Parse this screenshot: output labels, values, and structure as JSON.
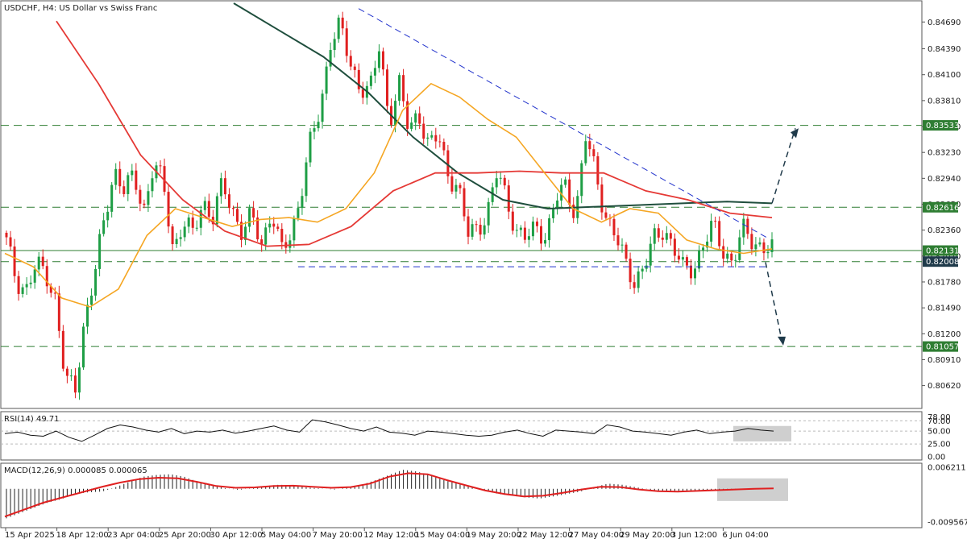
{
  "header": {
    "symbol_label": "USDCHF, H4:  US Dollar vs Swiss Franc"
  },
  "colors": {
    "bull": "#26a69a",
    "bear": "#e53935",
    "green_candle": "#1e9e45",
    "red_candle": "#e02020",
    "ma_fast": "#f5a623",
    "ma_mid": "#e53935",
    "ma_slow": "#1f4e3d",
    "level_line": "#2e7d32",
    "trend_line": "#2233cc",
    "arrow": "#1f3a4a",
    "macd_signal": "#e02020"
  },
  "chart_data": [
    {
      "type": "candlestick",
      "title": "USDCHF, H4:  US Dollar vs Swiss Franc",
      "price_axis_ticks": [
        "0.84690",
        "0.84390",
        "0.84100",
        "0.83810",
        "0.83520",
        "0.83230",
        "0.82940",
        "0.82650",
        "0.82360",
        "0.82070",
        "0.81780",
        "0.81490",
        "0.81200",
        "0.80910",
        "0.80620"
      ],
      "ylim": [
        0.804,
        0.849
      ],
      "x_tick_labels": [
        "15 Apr 2025",
        "18 Apr 12:00",
        "23 Apr 04:00",
        "25 Apr 20:00",
        "30 Apr 12:00",
        "5 May 04:00",
        "7 May 20:00",
        "12 May 12:00",
        "15 May 04:00",
        "19 May 20:00",
        "22 May 12:00",
        "27 May 04:00",
        "29 May 20:00",
        "3 Jun 12:00",
        "6 Jun 04:00"
      ],
      "horizontal_levels": [
        {
          "label": "0.83533",
          "value": 0.83533
        },
        {
          "label": "0.82616",
          "value": 0.82616
        },
        {
          "label": "0.82131",
          "value": 0.82131
        },
        {
          "label": "0.82008",
          "value": 0.82008
        },
        {
          "label": "0.81057",
          "value": 0.81057
        }
      ],
      "price_path": [
        0.8222,
        0.818,
        0.817,
        0.8195,
        0.8188,
        0.816,
        0.8065,
        0.8058,
        0.814,
        0.8185,
        0.825,
        0.8305,
        0.828,
        0.8295,
        0.826,
        0.831,
        0.8285,
        0.8215,
        0.8245,
        0.823,
        0.827,
        0.825,
        0.8285,
        0.826,
        0.8235,
        0.825,
        0.822,
        0.826,
        0.821,
        0.823,
        0.828,
        0.8335,
        0.837,
        0.845,
        0.8465,
        0.842,
        0.84,
        0.839,
        0.844,
        0.836,
        0.84,
        0.8345,
        0.837,
        0.833,
        0.834,
        0.83,
        0.8285,
        0.823,
        0.824,
        0.8255,
        0.83,
        0.827,
        0.8235,
        0.8225,
        0.824,
        0.823,
        0.827,
        0.8285,
        0.8255,
        0.834,
        0.83,
        0.8255,
        0.823,
        0.82,
        0.818,
        0.8195,
        0.8225,
        0.824,
        0.8215,
        0.819,
        0.8195,
        0.822,
        0.824,
        0.8215,
        0.82,
        0.8235,
        0.8225,
        0.8218,
        0.8213
      ],
      "ma_fast_path": [
        0.821,
        0.8195,
        0.816,
        0.815,
        0.817,
        0.823,
        0.826,
        0.825,
        0.824,
        0.8248,
        0.825,
        0.8245,
        0.826,
        0.83,
        0.837,
        0.84,
        0.8385,
        0.836,
        0.834,
        0.83,
        0.826,
        0.8245,
        0.826,
        0.8255,
        0.8225,
        0.8215,
        0.821,
        0.8215
      ],
      "ma_mid_path": [
        0.847,
        0.84,
        0.832,
        0.827,
        0.8235,
        0.8218,
        0.822,
        0.824,
        0.828,
        0.83,
        0.83,
        0.8302,
        0.83,
        0.83,
        0.828,
        0.827,
        0.8255,
        0.825
      ],
      "ma_slow_path": [
        0.849,
        0.846,
        0.843,
        0.839,
        0.834,
        0.83,
        0.827,
        0.826,
        0.8262,
        0.8264,
        0.8266,
        0.8268,
        0.8266
      ],
      "scenarios": [
        {
          "direction": "up",
          "from": 0.8266,
          "to": 0.835
        },
        {
          "direction": "down",
          "from": 0.82,
          "to": 0.8106
        }
      ]
    },
    {
      "type": "line",
      "indicator_label": "RSI(14) 49.71",
      "ticks": [
        "78.00",
        "70.00",
        "50.00",
        "25.00",
        "0.00"
      ],
      "ylim": [
        0,
        80
      ],
      "values": [
        45,
        48,
        42,
        40,
        50,
        38,
        30,
        42,
        55,
        62,
        58,
        52,
        48,
        55,
        45,
        50,
        48,
        52,
        46,
        50,
        55,
        60,
        52,
        48,
        72,
        68,
        62,
        55,
        50,
        58,
        48,
        46,
        42,
        50,
        48,
        45,
        42,
        40,
        42,
        48,
        52,
        45,
        40,
        52,
        50,
        48,
        45,
        62,
        58,
        50,
        48,
        45,
        42,
        48,
        52,
        45,
        48,
        50,
        55,
        52,
        50
      ]
    },
    {
      "type": "histogram",
      "indicator_label": "MACD(12,26,9) 0.000085 0.000065",
      "ticks": [
        "0.006211",
        "-0.009567"
      ],
      "ylim": [
        -0.009567,
        0.006211
      ],
      "histogram": [
        -0.0085,
        -0.007,
        -0.0055,
        -0.004,
        -0.003,
        -0.0015,
        -0.001,
        -0.0008,
        0.0005,
        0.002,
        0.0035,
        0.004,
        0.0042,
        0.0035,
        0.002,
        0.001,
        0.0002,
        -0.0003,
        0.0002,
        0.0008,
        0.0012,
        0.0008,
        0.0004,
        0.0001,
        -0.0002,
        0.0004,
        0.0012,
        0.0025,
        0.004,
        0.0055,
        0.005,
        0.004,
        0.0025,
        0.0015,
        0.0005,
        -0.0005,
        -0.0015,
        -0.002,
        -0.0025,
        -0.0028,
        -0.0022,
        -0.0015,
        -0.0008,
        0.0005,
        0.0015,
        0.0012,
        0.0005,
        -0.0002,
        -0.0008,
        -0.001,
        -0.0008,
        -0.0005,
        -0.0004,
        -0.0002,
        0.0,
        0.0001,
        0.0001
      ],
      "signal": [
        -0.008,
        -0.006,
        -0.004,
        -0.0025,
        -0.001,
        0.0005,
        0.0018,
        0.0028,
        0.0032,
        0.003,
        0.002,
        0.0008,
        0.0003,
        0.0004,
        0.0008,
        0.0009,
        0.0006,
        0.0003,
        0.0005,
        0.0015,
        0.0035,
        0.0045,
        0.0042,
        0.0025,
        0.001,
        -0.0005,
        -0.0015,
        -0.0022,
        -0.002,
        -0.0012,
        -0.0002,
        0.0006,
        0.0005,
        -0.0002,
        -0.0007,
        -0.0008,
        -0.0006,
        -0.0004,
        -0.0002,
        0.0,
        0.0001
      ]
    }
  ]
}
